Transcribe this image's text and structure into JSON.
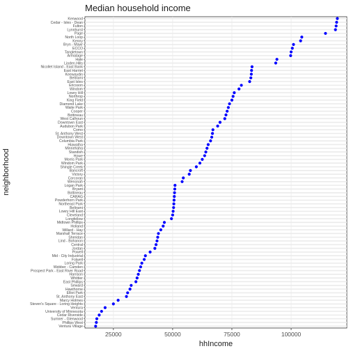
{
  "chart_data": {
    "type": "scatter",
    "title": "Median household income",
    "xlabel": "hhIncome",
    "ylabel": "neighborhood",
    "xlim": [
      13000,
      123500
    ],
    "x_ticks": [
      25000,
      50000,
      75000,
      100000
    ],
    "x_tick_labels": [
      "25000",
      "50000",
      "75000",
      "100000"
    ],
    "grid": true,
    "point_color": "#0000ff",
    "grid_color": "#ebebeb",
    "points": [
      {
        "neighborhood": "Kenwood",
        "hhIncome": 119500
      },
      {
        "neighborhood": "Cedar - Isles - Dean",
        "hhIncome": 119200
      },
      {
        "neighborhood": "Fulton",
        "hhIncome": 119000
      },
      {
        "neighborhood": "Lynnhurst",
        "hhIncome": 118700
      },
      {
        "neighborhood": "Page",
        "hhIncome": 114500
      },
      {
        "neighborhood": "North Loop",
        "hhIncome": 104500
      },
      {
        "neighborhood": "Kenny",
        "hhIncome": 104000
      },
      {
        "neighborhood": "Bryn - Mawr",
        "hhIncome": 101000
      },
      {
        "neighborhood": "ECCO",
        "hhIncome": 100500
      },
      {
        "neighborhood": "Tangletown",
        "hhIncome": 100000
      },
      {
        "neighborhood": "Armatage",
        "hhIncome": 99800
      },
      {
        "neighborhood": "Hale",
        "hhIncome": 94000
      },
      {
        "neighborhood": "Linden Hills",
        "hhIncome": 93500
      },
      {
        "neighborhood": "Nicollet Island - East Bank",
        "hhIncome": 83500
      },
      {
        "neighborhood": "East Harriet",
        "hhIncome": 83300
      },
      {
        "neighborhood": "Keewaydin",
        "hhIncome": 83200
      },
      {
        "neighborhood": "Beltrami",
        "hhIncome": 83000
      },
      {
        "neighborhood": "East Isles",
        "hhIncome": 82500
      },
      {
        "neighborhood": "Ericsson",
        "hhIncome": 79000
      },
      {
        "neighborhood": "Windom",
        "hhIncome": 78000
      },
      {
        "neighborhood": "Lowry Hill",
        "hhIncome": 76000
      },
      {
        "neighborhood": "Northrop",
        "hhIncome": 75500
      },
      {
        "neighborhood": "King Field",
        "hhIncome": 75000
      },
      {
        "neighborhood": "Diamond Lake",
        "hhIncome": 74000
      },
      {
        "neighborhood": "Waite Park",
        "hhIncome": 73500
      },
      {
        "neighborhood": "Cooper",
        "hhIncome": 73000
      },
      {
        "neighborhood": "Bottineau",
        "hhIncome": 72500
      },
      {
        "neighborhood": "West Calhoun",
        "hhIncome": 72000
      },
      {
        "neighborhood": "Downtown East",
        "hhIncome": 70000
      },
      {
        "neighborhood": "Audubon Park",
        "hhIncome": 69000
      },
      {
        "neighborhood": "Como",
        "hhIncome": 67000
      },
      {
        "neighborhood": "St. Anthony West",
        "hhIncome": 66800
      },
      {
        "neighborhood": "Downtown West",
        "hhIncome": 66500
      },
      {
        "neighborhood": "Columbia Park",
        "hhIncome": 66000
      },
      {
        "neighborhood": "Hiawatha",
        "hhIncome": 65000
      },
      {
        "neighborhood": "Minnehaha",
        "hhIncome": 64500
      },
      {
        "neighborhood": "Standish",
        "hhIncome": 64000
      },
      {
        "neighborhood": "Howe",
        "hhIncome": 63500
      },
      {
        "neighborhood": "Morris Park",
        "hhIncome": 62500
      },
      {
        "neighborhood": "Windom Park",
        "hhIncome": 61500
      },
      {
        "neighborhood": "Shingle Creek",
        "hhIncome": 60000
      },
      {
        "neighborhood": "Bancroft",
        "hhIncome": 57500
      },
      {
        "neighborhood": "Victory",
        "hhIncome": 57000
      },
      {
        "neighborhood": "Corcoran",
        "hhIncome": 54500
      },
      {
        "neighborhood": "Wenonah",
        "hhIncome": 54000
      },
      {
        "neighborhood": "Logan Park",
        "hhIncome": 51000
      },
      {
        "neighborhood": "Bryant",
        "hhIncome": 50900
      },
      {
        "neighborhood": "Bottineau",
        "hhIncome": 50800
      },
      {
        "neighborhood": "CARAG",
        "hhIncome": 50700
      },
      {
        "neighborhood": "Powderhorn Park",
        "hhIncome": 50600
      },
      {
        "neighborhood": "Northeast Park",
        "hhIncome": 50500
      },
      {
        "neighborhood": "Beltrami",
        "hhIncome": 50400
      },
      {
        "neighborhood": "Lowry Hill East",
        "hhIncome": 50200
      },
      {
        "neighborhood": "Cleveland",
        "hhIncome": 50000
      },
      {
        "neighborhood": "Longfellow",
        "hhIncome": 49500
      },
      {
        "neighborhood": "Midtown Phillips",
        "hhIncome": 46500
      },
      {
        "neighborhood": "Holland",
        "hhIncome": 46000
      },
      {
        "neighborhood": "Willard - Hay",
        "hhIncome": 45000
      },
      {
        "neighborhood": "Marshall Terrace",
        "hhIncome": 44000
      },
      {
        "neighborhood": "Sheridan",
        "hhIncome": 43700
      },
      {
        "neighborhood": "Lind - Bohanon",
        "hhIncome": 43400
      },
      {
        "neighborhood": "Central",
        "hhIncome": 43000
      },
      {
        "neighborhood": "Jordan",
        "hhIncome": 42500
      },
      {
        "neighborhood": "Powell",
        "hhIncome": 40500
      },
      {
        "neighborhood": "Mid - City Industrial",
        "hhIncome": 38500
      },
      {
        "neighborhood": "Folwell",
        "hhIncome": 38000
      },
      {
        "neighborhood": "Loring Park",
        "hhIncome": 37000
      },
      {
        "neighborhood": "Webber - Camden",
        "hhIncome": 36500
      },
      {
        "neighborhood": "Prospect Park - East River Road",
        "hhIncome": 36000
      },
      {
        "neighborhood": "Harrison",
        "hhIncome": 35500
      },
      {
        "neighborhood": "Whittier",
        "hhIncome": 35000
      },
      {
        "neighborhood": "East Phillips",
        "hhIncome": 34500
      },
      {
        "neighborhood": "Seward",
        "hhIncome": 32500
      },
      {
        "neighborhood": "Hawthorne",
        "hhIncome": 32000
      },
      {
        "neighborhood": "Elliot Park",
        "hhIncome": 31000
      },
      {
        "neighborhood": "St. Anthony East",
        "hhIncome": 30500
      },
      {
        "neighborhood": "Marcy Holmes",
        "hhIncome": 27000
      },
      {
        "neighborhood": "Steven's Square - Loring Heights",
        "hhIncome": 25000
      },
      {
        "neighborhood": "Ventura",
        "hhIncome": 21500
      },
      {
        "neighborhood": "University of Minnesota",
        "hhIncome": 20000
      },
      {
        "neighborhood": "Cedar Riverside",
        "hhIncome": 19000
      },
      {
        "neighborhood": "Sumner - Glenwood",
        "hhIncome": 18000
      },
      {
        "neighborhood": "Phillips West",
        "hhIncome": 17800
      },
      {
        "neighborhood": "Ventura Village",
        "hhIncome": 17500
      }
    ]
  }
}
